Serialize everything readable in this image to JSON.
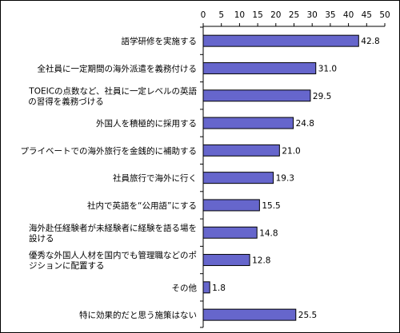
{
  "chart_data": {
    "type": "bar",
    "orientation": "horizontal",
    "title": "",
    "xlabel": "",
    "ylabel": "",
    "xlim": [
      0,
      50
    ],
    "x_ticks": [
      0,
      5,
      10,
      15,
      20,
      25,
      30,
      35,
      40,
      45,
      50
    ],
    "axis_position": "top",
    "grid": false,
    "bar_fill": "#6666cc",
    "bar_stroke": "#000000",
    "categories": [
      [
        "語学研修を実施する"
      ],
      [
        "全社員に一定期間の海外派遣を義務付ける"
      ],
      [
        "TOEICの点数など、社員に一定レベルの英語",
        "の習得を義務づける"
      ],
      [
        "外国人を積極的に採用する"
      ],
      [
        "プライベートでの海外旅行を金銭的に補助する"
      ],
      [
        "社員旅行で海外に行く"
      ],
      [
        "社内で英語を“公用語”にする"
      ],
      [
        "海外赴任経験者が未経験者に経験を語る場を",
        "設ける"
      ],
      [
        "優秀な外国人人材を国内でも管理職などのポ",
        "ジションに配置する"
      ],
      [
        "その他"
      ],
      [
        "特に効果的だと思う施策はない"
      ]
    ],
    "values": [
      42.8,
      31.0,
      29.5,
      24.8,
      21.0,
      19.3,
      15.5,
      14.8,
      12.8,
      1.8,
      25.5
    ],
    "value_labels": [
      "42.8",
      "31.0",
      "29.5",
      "24.8",
      "21.0",
      "19.3",
      "15.5",
      "14.8",
      "12.8",
      "1.8",
      "25.5"
    ]
  }
}
